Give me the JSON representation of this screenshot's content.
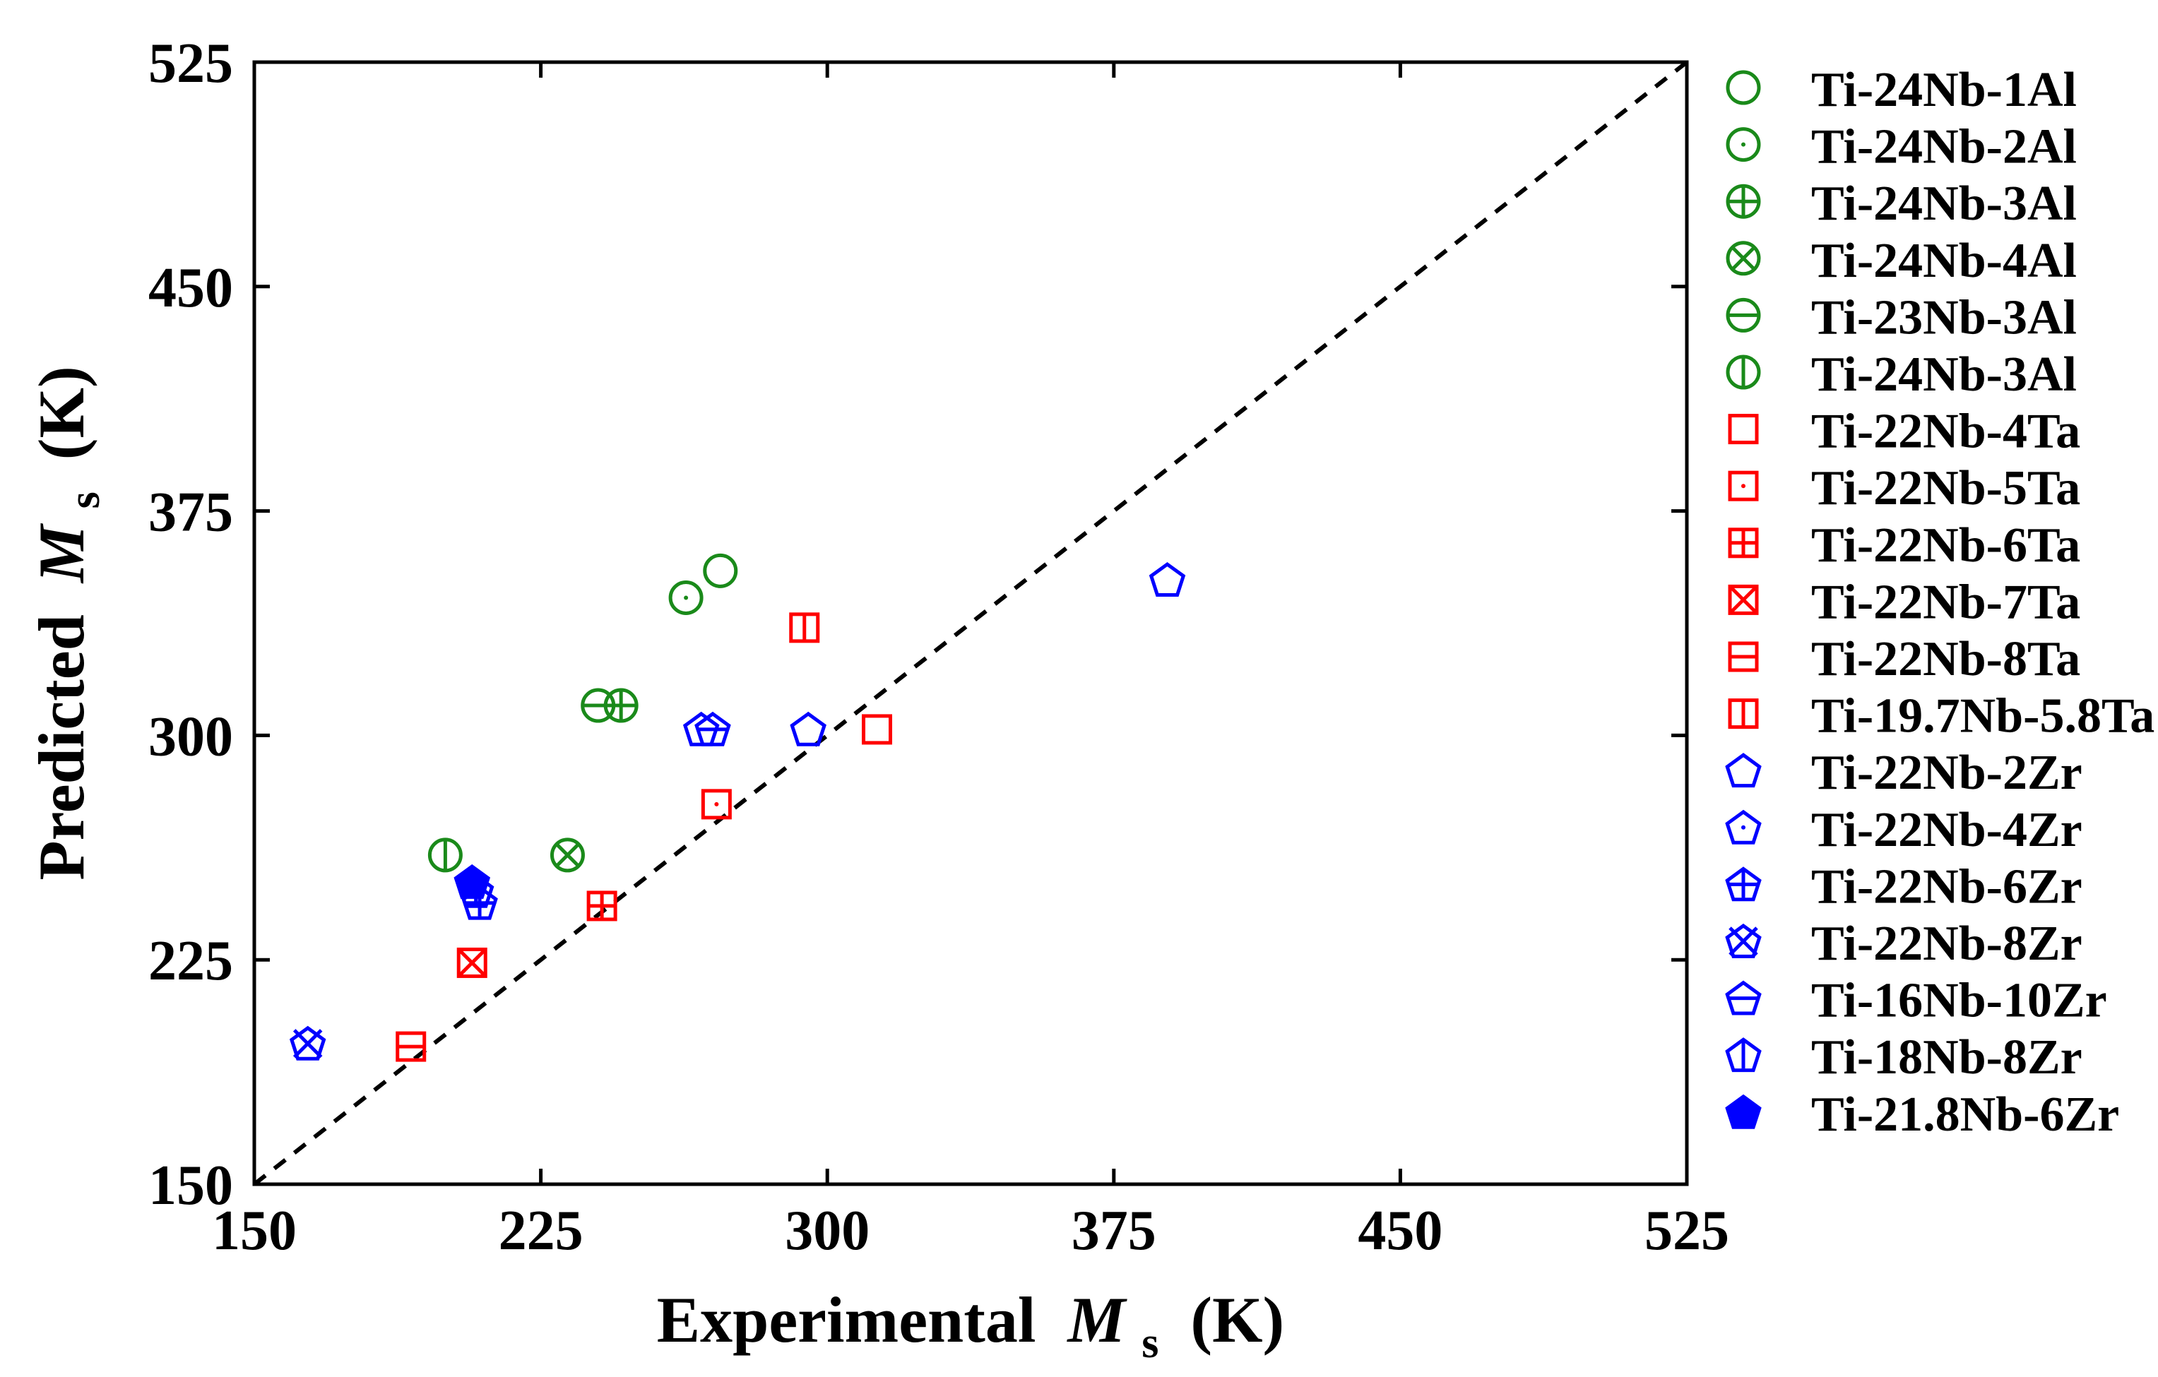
{
  "chart_data": {
    "type": "scatter",
    "xlabel": "Experimental",
    "ylabel": "Predicted",
    "label_symbol": "M",
    "label_sub": "s",
    "label_unit": "(K)",
    "xlim": [
      150,
      525
    ],
    "ylim": [
      150,
      525
    ],
    "xticks": [
      "150",
      "225",
      "300",
      "375",
      "450",
      "525"
    ],
    "yticks": [
      "150",
      "225",
      "300",
      "375",
      "450",
      "525"
    ],
    "reference_line": "y = x (dashed)",
    "legend_position": "right",
    "colors": {
      "Al": "#1a8a1a",
      "Ta": "#ff0000",
      "Zr": "#0000ff"
    },
    "series": [
      {
        "name": "Ti-24Nb-1Al",
        "group": "Al",
        "marker": "circle",
        "points": [
          [
            272,
            355
          ]
        ]
      },
      {
        "name": "Ti-24Nb-2Al",
        "group": "Al",
        "marker": "circle-dot",
        "points": [
          [
            263,
            346
          ]
        ]
      },
      {
        "name": "Ti-24Nb-3Al",
        "group": "Al",
        "marker": "circle-plus",
        "points": [
          [
            246,
            310
          ]
        ]
      },
      {
        "name": "Ti-24Nb-4Al",
        "group": "Al",
        "marker": "circle-x",
        "points": [
          [
            232,
            260
          ]
        ]
      },
      {
        "name": "Ti-23Nb-3Al",
        "group": "Al",
        "marker": "circle-hline",
        "points": [
          [
            240,
            310
          ]
        ]
      },
      {
        "name": "Ti-24Nb-3Al",
        "group": "Al",
        "marker": "circle-vline",
        "points": [
          [
            200,
            260
          ]
        ]
      },
      {
        "name": "Ti-22Nb-4Ta",
        "group": "Ta",
        "marker": "square",
        "points": [
          [
            313,
            302
          ]
        ]
      },
      {
        "name": "Ti-22Nb-5Ta",
        "group": "Ta",
        "marker": "square-dot",
        "points": [
          [
            271,
            277
          ]
        ]
      },
      {
        "name": "Ti-22Nb-6Ta",
        "group": "Ta",
        "marker": "square-plus",
        "points": [
          [
            241,
            243
          ]
        ]
      },
      {
        "name": "Ti-22Nb-7Ta",
        "group": "Ta",
        "marker": "square-x",
        "points": [
          [
            207,
            224
          ]
        ]
      },
      {
        "name": "Ti-22Nb-8Ta",
        "group": "Ta",
        "marker": "square-hline",
        "points": [
          [
            191,
            196
          ]
        ]
      },
      {
        "name": "Ti-19.7Nb-5.8Ta",
        "group": "Ta",
        "marker": "square-vline",
        "points": [
          [
            294,
            336
          ]
        ]
      },
      {
        "name": "Ti-22Nb-2Zr",
        "group": "Zr",
        "marker": "pentagon",
        "points": [
          [
            389,
            352
          ],
          [
            267,
            302
          ],
          [
            295,
            302
          ]
        ]
      },
      {
        "name": "Ti-22Nb-4Zr",
        "group": "Zr",
        "marker": "pentagon-dot",
        "points": []
      },
      {
        "name": "Ti-22Nb-6Zr",
        "group": "Zr",
        "marker": "pentagon-plus",
        "points": [
          [
            209,
            244
          ]
        ]
      },
      {
        "name": "Ti-22Nb-8Zr",
        "group": "Zr",
        "marker": "pentagon-x",
        "points": [
          [
            164,
            197
          ]
        ]
      },
      {
        "name": "Ti-16Nb-10Zr",
        "group": "Zr",
        "marker": "pentagon-hline",
        "points": [
          [
            270,
            302
          ]
        ]
      },
      {
        "name": "Ti-18Nb-8Zr",
        "group": "Zr",
        "marker": "pentagon-vline",
        "points": [
          [
            208,
            248
          ]
        ]
      },
      {
        "name": "Ti-21.8Nb-6Zr",
        "group": "Zr",
        "marker": "pentagon-filled",
        "points": [
          [
            207,
            251
          ]
        ]
      }
    ]
  }
}
